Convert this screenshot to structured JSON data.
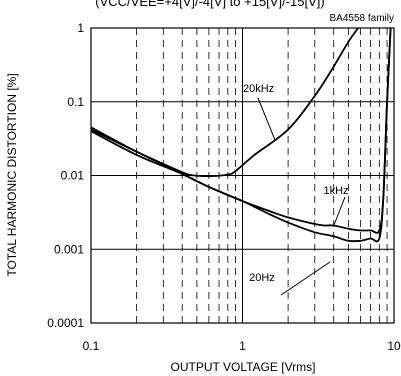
{
  "chart_data": {
    "type": "line",
    "title": "(VCC/VEE=+4[V]/-4[V] to +15[V]/-15[V])",
    "family_label": "BA4558  family",
    "xlabel": "OUTPUT VOLTAGE [Vrms]",
    "ylabel": "TOTAL HARMONIC DISTORTION [%]",
    "x_scale": "log",
    "y_scale": "log",
    "xlim": [
      0.1,
      10
    ],
    "ylim": [
      0.0001,
      1
    ],
    "x_ticks": [
      {
        "value": 0.1,
        "label": "0.1"
      },
      {
        "value": 1,
        "label": "1"
      },
      {
        "value": 10,
        "label": "10"
      }
    ],
    "y_ticks": [
      {
        "value": 1,
        "label": "1"
      },
      {
        "value": 0.1,
        "label": "0.1"
      },
      {
        "value": 0.01,
        "label": "0.01"
      },
      {
        "value": 0.001,
        "label": "0.001"
      },
      {
        "value": 0.0001,
        "label": "0.0001"
      }
    ],
    "grid": "major solid, minor dashed (x)",
    "series": [
      {
        "name": "20kHz",
        "x": [
          0.1,
          0.2,
          0.35,
          0.45,
          0.6,
          0.8,
          0.9,
          1.2,
          2.0,
          3.0,
          4.0,
          5.0,
          5.8
        ],
        "y": [
          0.042,
          0.021,
          0.0125,
          0.0102,
          0.0098,
          0.0103,
          0.0115,
          0.019,
          0.042,
          0.12,
          0.3,
          0.65,
          1.0
        ]
      },
      {
        "name": "1kHz",
        "x": [
          0.1,
          0.2,
          0.4,
          0.6,
          1.0,
          1.5,
          2.0,
          3.0,
          3.5,
          4.0,
          5.0,
          6.0,
          7.0,
          8.0,
          8.5,
          9.0,
          9.5
        ],
        "y": [
          0.04,
          0.019,
          0.0105,
          0.007,
          0.0045,
          0.0033,
          0.0027,
          0.0022,
          0.0021,
          0.0021,
          0.0019,
          0.0018,
          0.0018,
          0.0018,
          0.005,
          0.1,
          1.0
        ]
      },
      {
        "name": "20Hz",
        "x": [
          0.1,
          0.2,
          0.4,
          0.6,
          1.0,
          1.5,
          2.0,
          3.0,
          4.0,
          5.0,
          6.0,
          7.0,
          8.0,
          8.5,
          9.0,
          9.5
        ],
        "y": [
          0.045,
          0.021,
          0.0105,
          0.007,
          0.0045,
          0.003,
          0.0023,
          0.0017,
          0.0015,
          0.0013,
          0.0013,
          0.0014,
          0.0014,
          0.005,
          0.1,
          1.0
        ]
      }
    ],
    "annotations": [
      {
        "text": "20kHz"
      },
      {
        "text": "1kHz"
      },
      {
        "text": "20Hz"
      }
    ]
  }
}
